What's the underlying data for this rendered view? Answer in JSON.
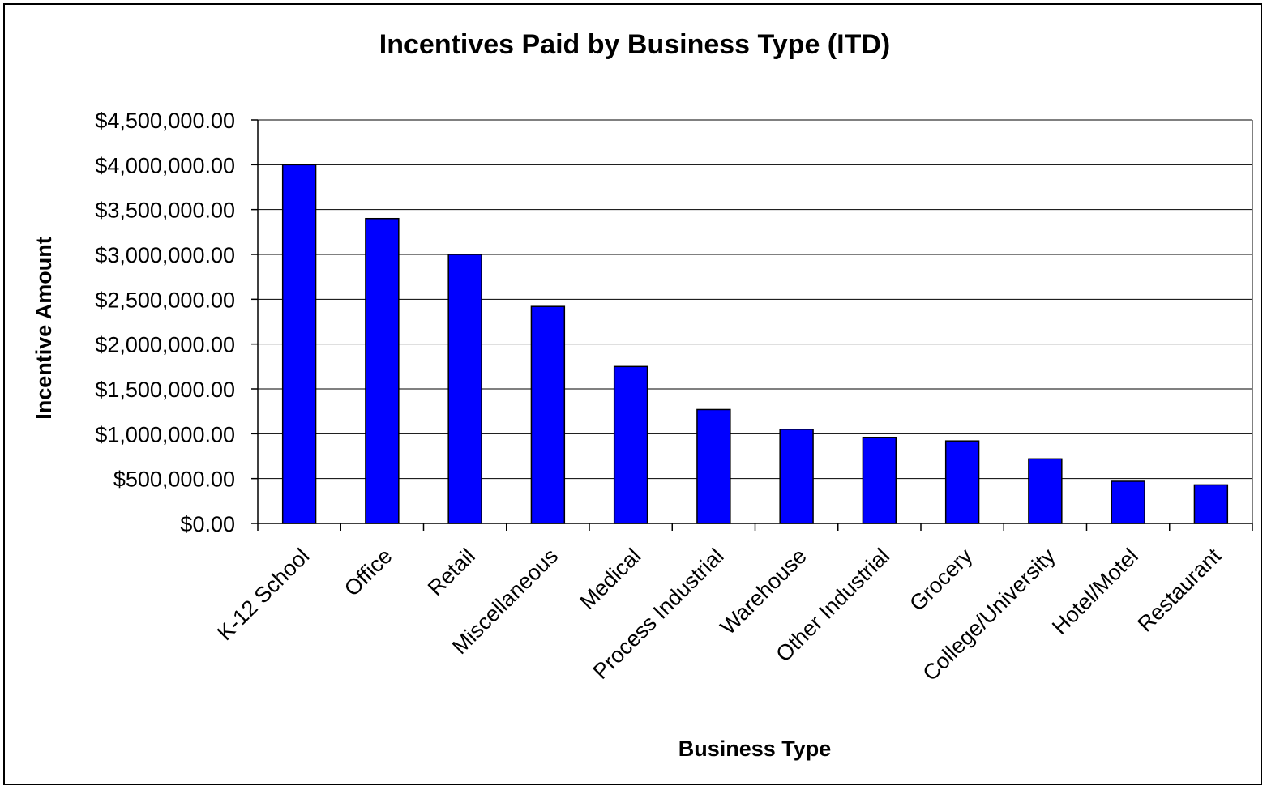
{
  "chart_data": {
    "type": "bar",
    "title": "Incentives Paid by Business Type (ITD)",
    "xlabel": "Business Type",
    "ylabel": "Incentive Amount",
    "categories": [
      "K-12 School",
      "Office",
      "Retail",
      "Miscellaneous",
      "Medical",
      "Process Industrial",
      "Warehouse",
      "Other Industrial",
      "Grocery",
      "College/University",
      "Hotel/Motel",
      "Restaurant"
    ],
    "values": [
      4000000,
      3400000,
      3000000,
      2420000,
      1750000,
      1270000,
      1050000,
      960000,
      920000,
      720000,
      470000,
      430000
    ],
    "ylim": [
      0,
      4500000
    ],
    "yticks": [
      0,
      500000,
      1000000,
      1500000,
      2000000,
      2500000,
      3000000,
      3500000,
      4000000,
      4500000
    ],
    "ytick_labels": [
      "$0.00",
      "$500,000.00",
      "$1,000,000.00",
      "$1,500,000.00",
      "$2,000,000.00",
      "$2,500,000.00",
      "$3,000,000.00",
      "$3,500,000.00",
      "$4,000,000.00",
      "$4,500,000.00"
    ],
    "grid": true,
    "legend": "none",
    "bar_color": "#0000FF",
    "plot_background": "#FFFFFF"
  }
}
